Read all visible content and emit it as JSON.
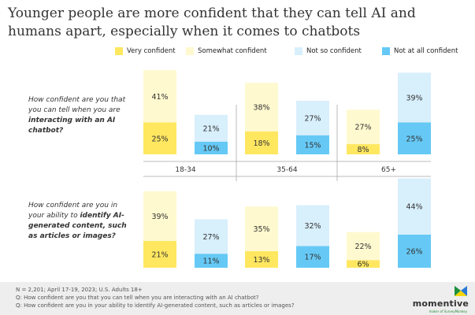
{
  "title": "Younger people are more confident that they can tell AI and humans apart, especially when it comes to chatbots",
  "colors": {
    "very": "#FFE760",
    "somewhat": "#FFF9CF",
    "notso": "#D8EFFC",
    "notatall": "#66C9F5"
  },
  "questions": [
    {
      "plain": "How confident are you that you can tell when you are",
      "bold": "interacting with an AI chatbot?"
    },
    {
      "plain": "How confident are you in your ability to",
      "bold": "identify AI-generated content, such as articles or images?"
    }
  ],
  "footer": {
    "note": "N = 2,201; April 17-19, 2023; U.S. Adults 18+",
    "q1": "Q: How confident are you that you can tell when you are interacting with an AI chatbot?",
    "q2": "Q: How confident are you in your ability to identify AI-generated content, such as articles or images?"
  },
  "logo": {
    "name": "momentive",
    "tagline": "maker of SurveyMonkey"
  },
  "chart_data": {
    "type": "bar",
    "stacked": true,
    "categories": [
      "18-34",
      "35-64",
      "65+"
    ],
    "legend": [
      "Very confident",
      "Somewhat confident",
      "Not so confident",
      "Not at all confident"
    ],
    "legend_position": "top",
    "panels": [
      {
        "question": "interacting with an AI chatbot",
        "very": [
          25,
          18,
          8
        ],
        "somewhat": [
          41,
          38,
          27
        ],
        "notso": [
          21,
          27,
          39
        ],
        "notatall": [
          10,
          15,
          25
        ]
      },
      {
        "question": "identify AI-generated content",
        "very": [
          21,
          13,
          6
        ],
        "somewhat": [
          39,
          35,
          22
        ],
        "notso": [
          27,
          32,
          44
        ],
        "notatall": [
          11,
          17,
          26
        ]
      }
    ]
  }
}
